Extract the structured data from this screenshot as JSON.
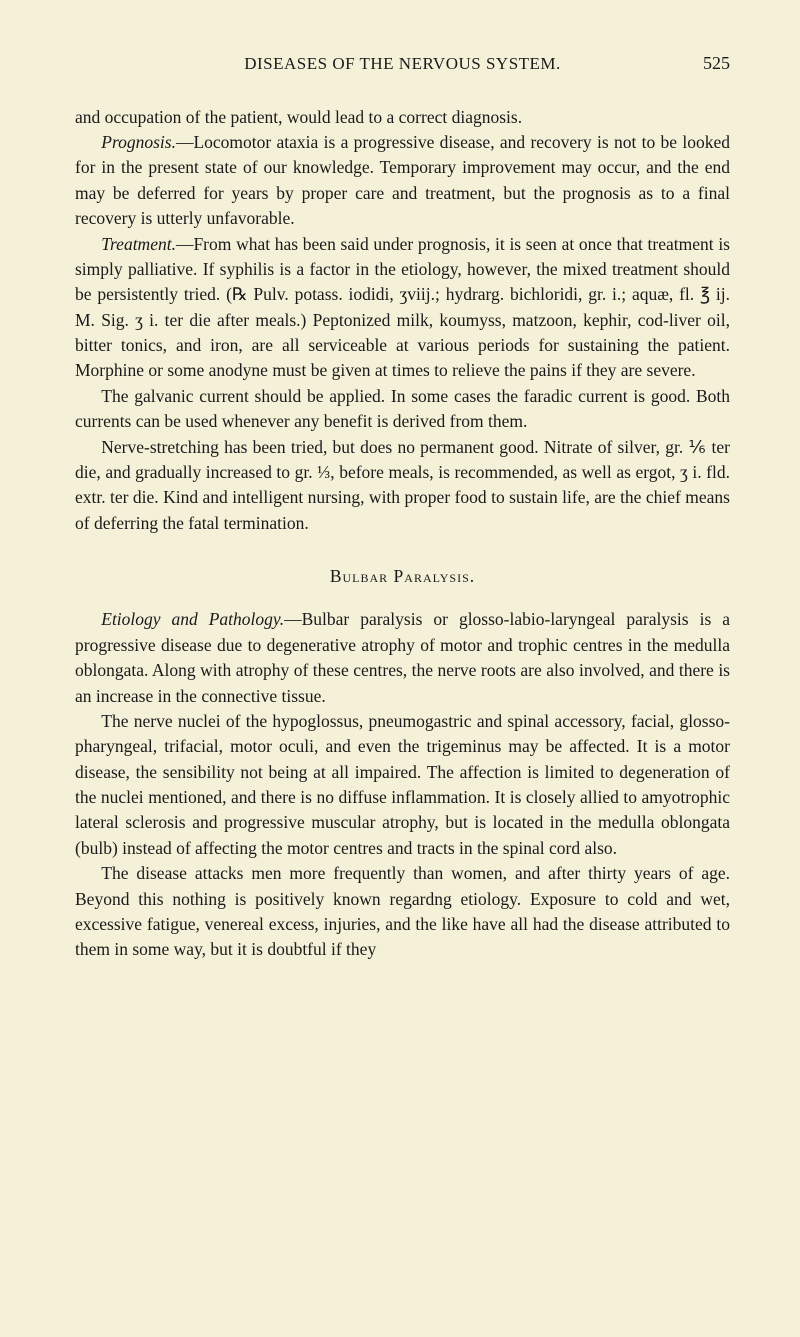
{
  "header": {
    "title": "DISEASES OF THE NERVOUS SYSTEM.",
    "page_number": "525"
  },
  "paragraphs": {
    "p1": "and occupation of the patient, would lead to a correct diagnosis.",
    "p2_label": "Prognosis.",
    "p2": "—Locomotor ataxia is a progressive disease, and recovery is not to be looked for in the present state of our knowledge. Temporary improvement may occur, and the end may be deferred for years by proper care and treatment, but the prognosis as to a final recovery is utterly unfavorable.",
    "p3_label": "Treatment.",
    "p3": "—From what has been said under prognosis, it is seen at once that treatment is simply palliative. If syphilis is a factor in the etiology, however, the mixed treatment should be persistently tried. (℞ Pulv. potass. iodidi, ʒviij.; hydrarg. bichloridi, gr. i.; aquæ, fl. ℥ ij. M. Sig. ʒ i. ter die after meals.) Peptonized milk, koumyss, matzoon, kephir, cod-liver oil, bitter tonics, and iron, are all serviceable at various periods for sustaining the patient. Morphine or some anodyne must be given at times to relieve the pains if they are severe.",
    "p4": "The galvanic current should be applied. In some cases the faradic current is good. Both currents can be used whenever any benefit is derived from them.",
    "p5": "Nerve-stretching has been tried, but does no permanent good. Nitrate of silver, gr. ⅙ ter die, and gradually increased to gr. ⅓, before meals, is recommended, as well as ergot, ʒ i. fld. extr. ter die. Kind and intelligent nursing, with proper food to sustain life, are the chief means of deferring the fatal termination.",
    "section_heading": "Bulbar Paralysis.",
    "p6_label": "Etiology and Pathology.",
    "p6": "—Bulbar paralysis or glosso-labio-laryngeal paralysis is a progressive disease due to degenerative atrophy of motor and trophic centres in the medulla oblongata. Along with atrophy of these centres, the nerve roots are also involved, and there is an increase in the connective tissue.",
    "p7": "The nerve nuclei of the hypoglossus, pneumogastric and spinal accessory, facial, glosso-pharyngeal, trifacial, motor oculi, and even the trigeminus may be affected. It is a motor disease, the sensibility not being at all impaired. The affection is limited to degeneration of the nuclei mentioned, and there is no diffuse inflammation. It is closely allied to amyotrophic lateral sclerosis and progressive muscular atrophy, but is located in the medulla oblongata (bulb) instead of affecting the motor centres and tracts in the spinal cord also.",
    "p8": "The disease attacks men more frequently than women, and after thirty years of age. Beyond this nothing is positively known regardng etiology. Exposure to cold and wet, excessive fatigue, venereal excess, injuries, and the like have all had the disease attributed to them in some way, but it is doubtful if they"
  }
}
